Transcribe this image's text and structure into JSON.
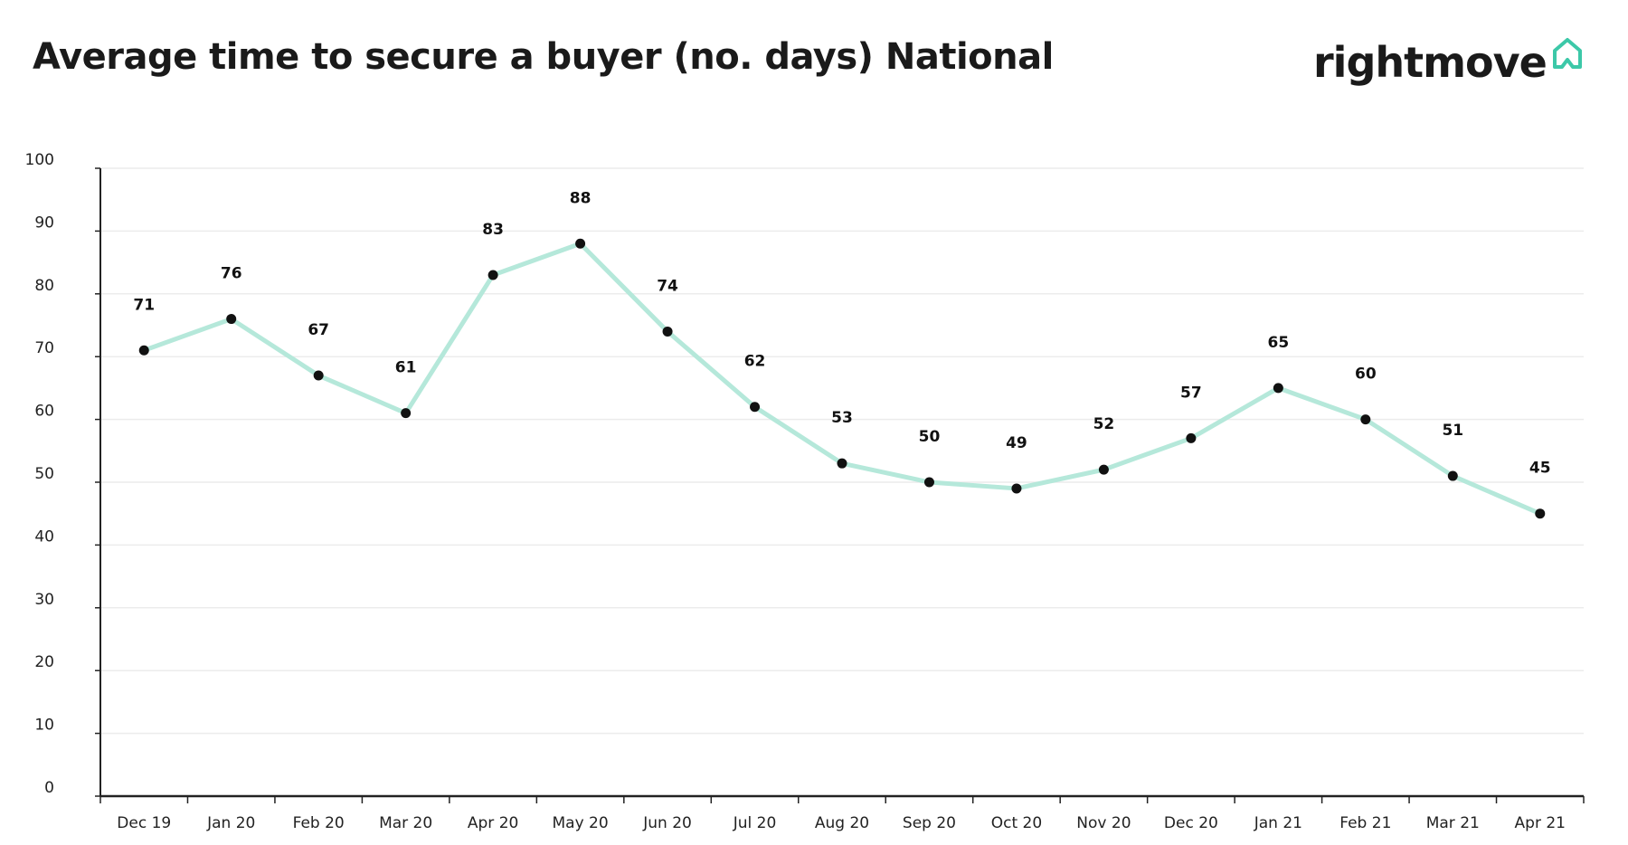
{
  "logo": {
    "text": "rightmove",
    "icon": "house-outline-icon",
    "accent_color": "#3cc8a8"
  },
  "chart_data": {
    "type": "line",
    "title": "Average time to secure a buyer (no. days) National",
    "xlabel": "",
    "ylabel": "",
    "categories": [
      "Dec 19",
      "Jan 20",
      "Feb 20",
      "Mar 20",
      "Apr 20",
      "May 20",
      "Jun 20",
      "Jul 20",
      "Aug 20",
      "Sep 20",
      "Oct 20",
      "Nov 20",
      "Dec 20",
      "Jan 21",
      "Feb 21",
      "Mar 21",
      "Apr 21"
    ],
    "series": [
      {
        "name": "National",
        "values": [
          71,
          76,
          67,
          61,
          83,
          88,
          74,
          62,
          53,
          50,
          49,
          52,
          57,
          65,
          60,
          51,
          45
        ],
        "color": "#b5e8da"
      }
    ],
    "ylim": [
      0,
      100
    ],
    "yticks": [
      0,
      10,
      20,
      30,
      40,
      50,
      60,
      70,
      80,
      90,
      100
    ],
    "grid": true,
    "data_labels": true
  }
}
